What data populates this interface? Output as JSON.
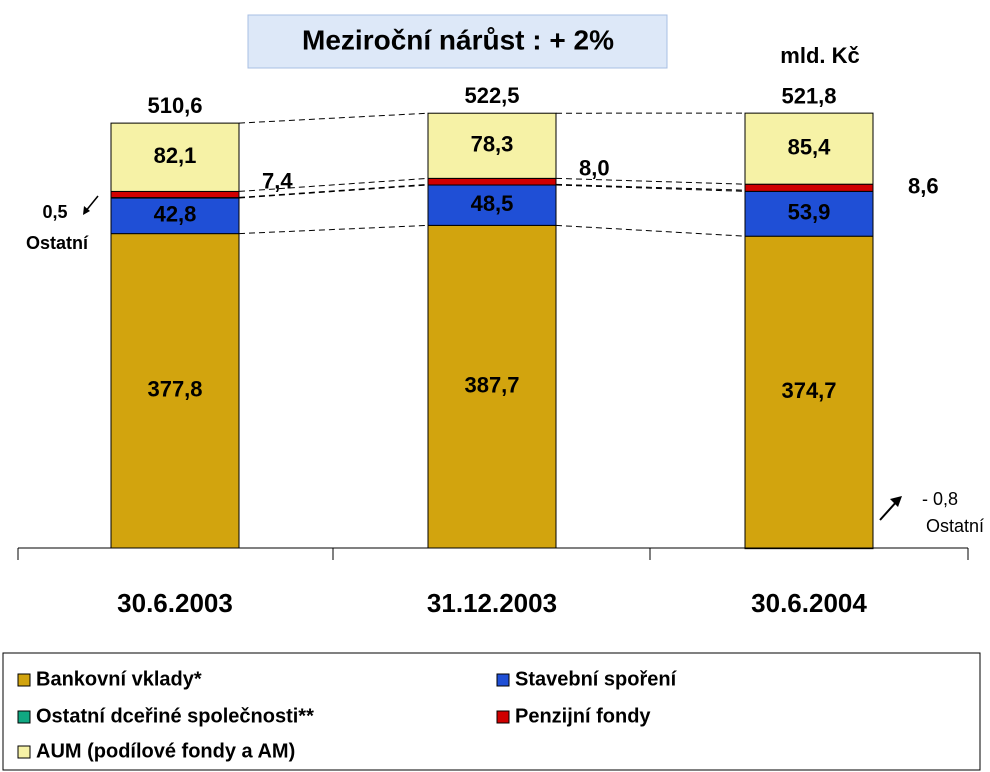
{
  "chart_data": {
    "type": "stacked_bar",
    "title": "Meziroční nárůst :  + 2%",
    "unit_label": "mld. Kč",
    "categories": [
      "30.6.2003",
      "31.12.2003",
      "30.6.2004"
    ],
    "series": [
      {
        "name": "Bankovní vklady*",
        "color": "#d2a40e",
        "values": [
          377.8,
          387.7,
          374.7
        ],
        "value_labels": [
          "377,8",
          "387,7",
          "374,7"
        ]
      },
      {
        "name": "Stavební spoření",
        "color": "#1f4fd6",
        "values": [
          42.8,
          48.5,
          53.9
        ],
        "value_labels": [
          "42,8",
          "48,5",
          "53,9"
        ]
      },
      {
        "name": "Ostatní dceřiné společnosti**",
        "color": "#10a882",
        "values": [
          0.5,
          0,
          -0.8
        ],
        "value_labels": [
          "0,5",
          null,
          "- 0,8"
        ]
      },
      {
        "name": "Penzijní fondy",
        "color": "#d00000",
        "values": [
          7.4,
          8.0,
          8.6
        ],
        "value_labels": [
          "7,4",
          "8,0",
          "8,6"
        ]
      },
      {
        "name": "AUM (podílové fondy a AM)",
        "color": "#f6f2a6",
        "values": [
          82.1,
          78.3,
          85.4
        ],
        "value_labels": [
          "82,1",
          "78,3",
          "85,4"
        ]
      }
    ],
    "totals": [
      510.6,
      522.5,
      521.8
    ],
    "total_labels": [
      "510,6",
      "522,5",
      "521,8"
    ],
    "annotations": [
      "Ostatní",
      null,
      "Ostatní"
    ],
    "ylim": [
      0,
      560
    ],
    "legend": "bottom"
  }
}
